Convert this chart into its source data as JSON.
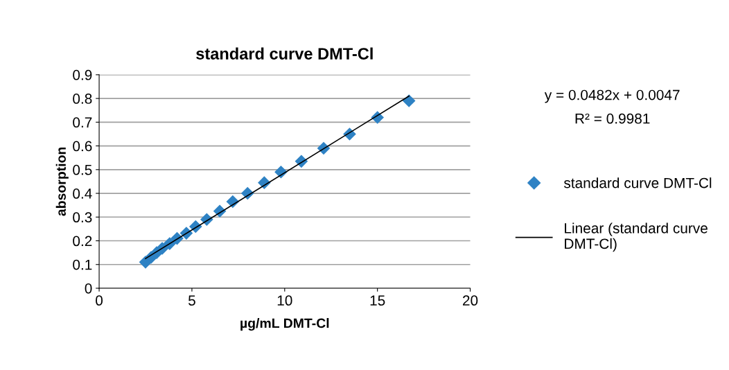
{
  "chart_data": {
    "type": "scatter",
    "title": "standard curve DMT-Cl",
    "xlabel": "µg/mL DMT-Cl",
    "ylabel": "absorption",
    "xlim": [
      0,
      20
    ],
    "xticks": [
      0,
      5,
      10,
      15,
      20
    ],
    "ylim": [
      0,
      0.9
    ],
    "yticks": [
      0,
      0.1,
      0.2,
      0.3,
      0.4,
      0.5,
      0.6,
      0.7,
      0.8,
      0.9
    ],
    "grid": "y",
    "legend": "right",
    "annotations": [
      "y = 0.0482x + 0.0047",
      "R² = 0.9981"
    ],
    "series": [
      {
        "name": "standard curve DMT-Cl",
        "marker": "diamond",
        "color": "#2e82c4",
        "x": [
          2.5,
          2.8,
          3.1,
          3.4,
          3.8,
          4.2,
          4.7,
          5.2,
          5.8,
          6.5,
          7.2,
          8.0,
          8.9,
          9.8,
          10.9,
          12.1,
          13.5,
          15.0,
          16.7
        ],
        "values": [
          0.11,
          0.13,
          0.15,
          0.168,
          0.188,
          0.21,
          0.232,
          0.26,
          0.29,
          0.325,
          0.365,
          0.4,
          0.445,
          0.49,
          0.535,
          0.59,
          0.65,
          0.72,
          0.79
        ]
      },
      {
        "name": "Linear (standard curve DMT-Cl)",
        "type": "line",
        "marker": "none",
        "color": "#000000",
        "x": [
          2.5,
          16.7
        ],
        "values": [
          0.125,
          0.81
        ]
      }
    ]
  }
}
